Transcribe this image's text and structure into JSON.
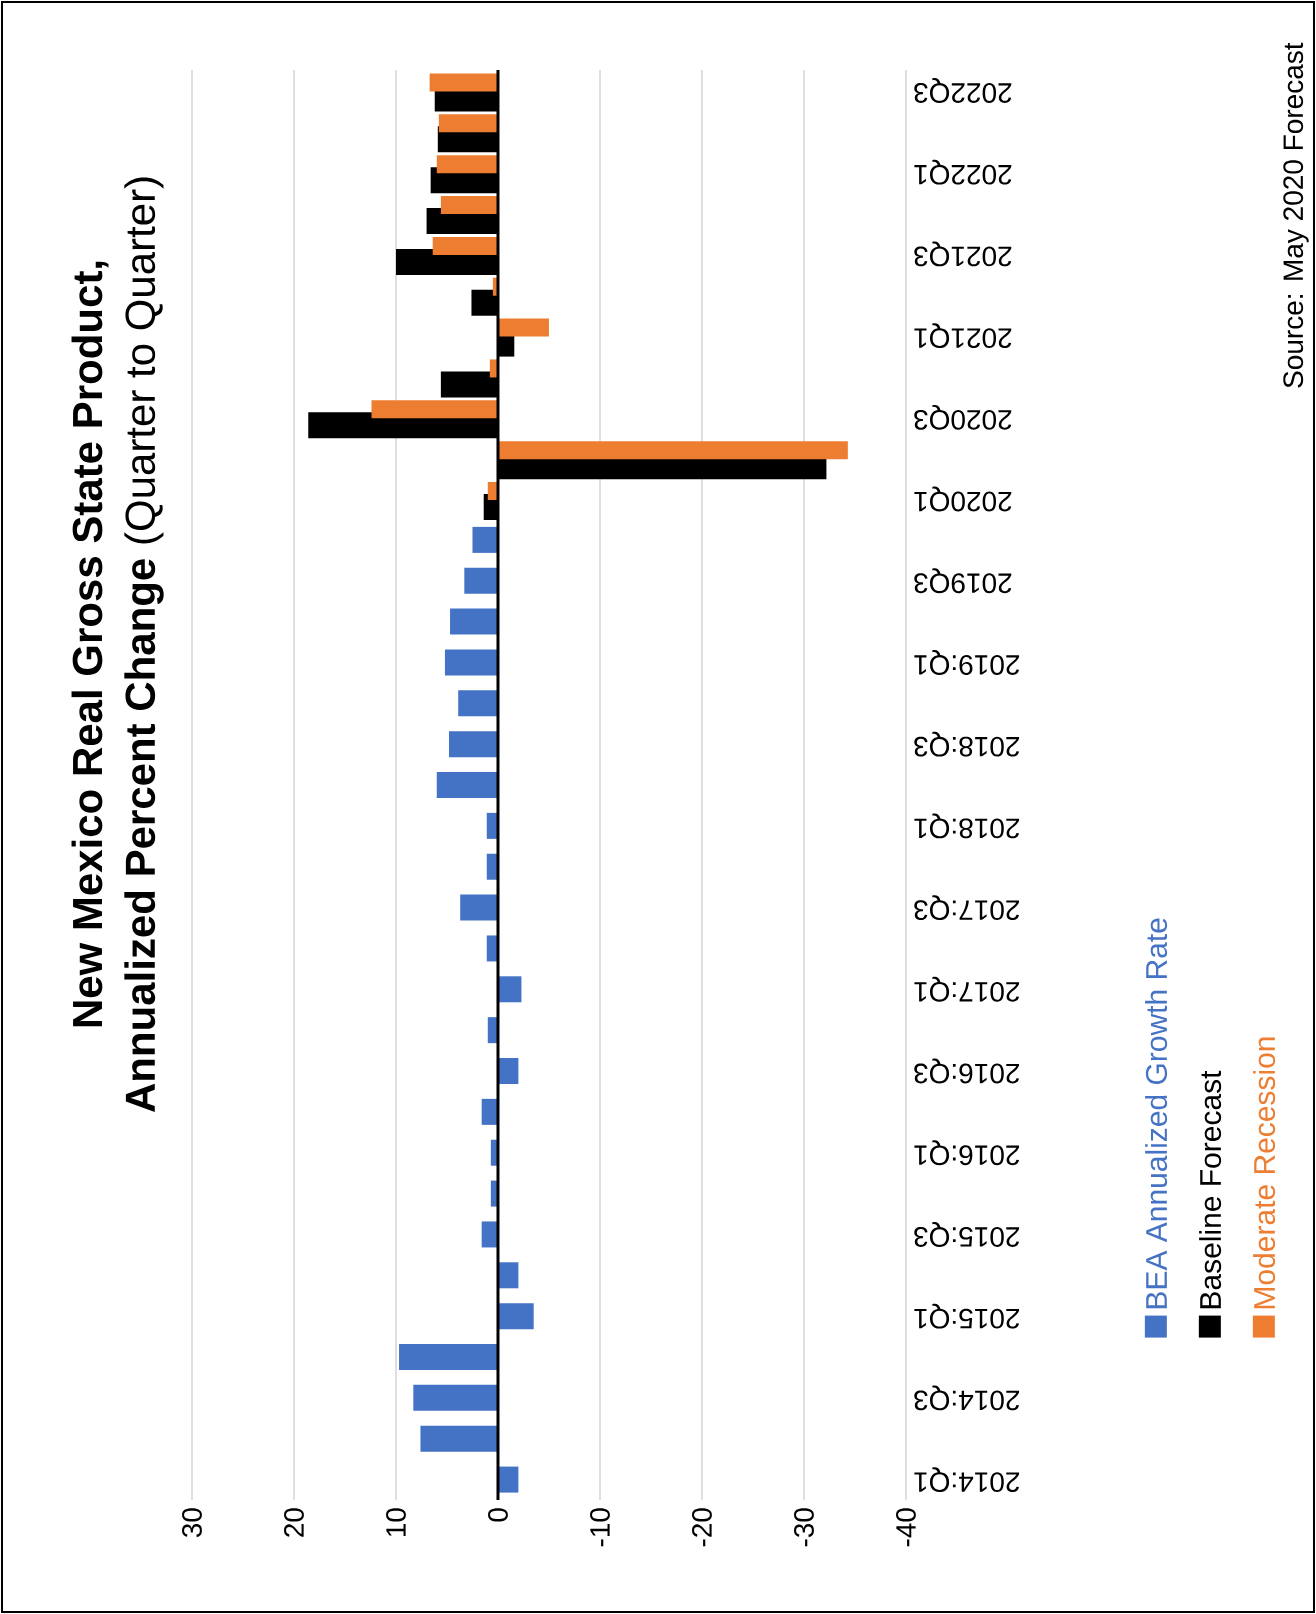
{
  "chart_data": {
    "type": "bar",
    "orientation": "horizontal",
    "title": "New Mexico Real Gross State Product,",
    "subtitle": "**Annualized Percent Change** (Quarter to Quarter)",
    "categories": [
      "2022Q3",
      null,
      "2022Q1",
      null,
      "2021Q3",
      null,
      "2021Q1",
      null,
      "2020Q3",
      null,
      "2020Q1",
      null,
      "2019Q3",
      null,
      "2019:Q1",
      null,
      "2018:Q3",
      null,
      "2018:Q1",
      null,
      "2017:Q3",
      null,
      "2017:Q1",
      null,
      "2016:Q3",
      null,
      "2016:Q1",
      null,
      "2015:Q3",
      null,
      "2015:Q1",
      null,
      "2014:Q3",
      null,
      "2014:Q1"
    ],
    "series": [
      {
        "name": "BEA Annualized Growth Rate",
        "color": "#4472c4",
        "values": [
          null,
          null,
          null,
          null,
          null,
          null,
          null,
          null,
          null,
          null,
          null,
          2.5,
          3.3,
          4.7,
          5.2,
          3.9,
          4.8,
          6.0,
          1.1,
          1.1,
          3.7,
          1.1,
          -2.3,
          1.0,
          -2.0,
          1.6,
          0.7,
          0.7,
          1.6,
          -2.0,
          -3.5,
          9.7,
          8.3,
          7.6,
          -2.0
        ]
      },
      {
        "name": "Baseline Forecast",
        "color": "#000000",
        "values": [
          6.2,
          5.9,
          6.6,
          7.0,
          10.0,
          2.6,
          -1.6,
          5.6,
          18.6,
          -32.2,
          1.4,
          null,
          null,
          null,
          null,
          null,
          null,
          null,
          null,
          null,
          null,
          null,
          null,
          null,
          null,
          null,
          null,
          null,
          null,
          null,
          null,
          null,
          null,
          null,
          null
        ]
      },
      {
        "name": "Moderate Recession",
        "color": "#ed7d31",
        "values": [
          6.7,
          5.8,
          6.0,
          5.6,
          6.4,
          0.5,
          -5.0,
          0.8,
          12.4,
          -34.3,
          1.0,
          null,
          null,
          null,
          null,
          null,
          null,
          null,
          null,
          null,
          null,
          null,
          null,
          null,
          null,
          null,
          null,
          null,
          null,
          null,
          null,
          null,
          null,
          null,
          null
        ]
      }
    ],
    "xlim": [
      30,
      -40
    ],
    "xticks": [
      30,
      20,
      10,
      0,
      -10,
      -20,
      -30,
      -40
    ],
    "grid": "x",
    "legend": "bottom right",
    "annotations": [
      "Source: May 2020 Forecast"
    ]
  }
}
